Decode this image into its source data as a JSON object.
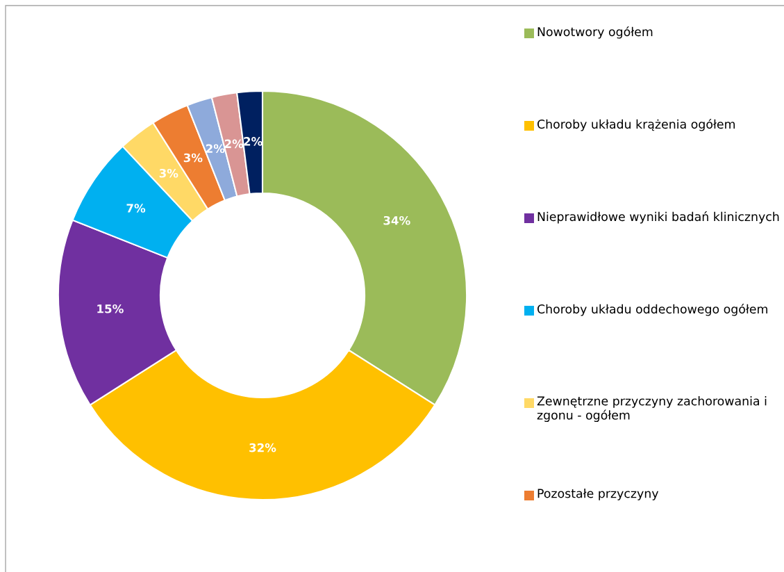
{
  "chart_data": {
    "type": "donut",
    "categories": [
      "Nowotwory ogółem",
      "Choroby układu krążenia ogółem",
      "Nieprawidłowe wyniki badań klinicznych",
      "Choroby układu oddechowego ogółem",
      "Zewnętrzne przyczyny zachorowania i zgonu - ogółem",
      "Pozostałe przyczyny",
      null,
      null,
      null
    ],
    "values": [
      34,
      32,
      15,
      7,
      3,
      3,
      2,
      2,
      2
    ],
    "value_labels": [
      "34%",
      "32%",
      "15%",
      "7%",
      "3%",
      "3%",
      "2%",
      "2%",
      "2%"
    ],
    "colors": [
      "#9bbb59",
      "#ffc000",
      "#7030a0",
      "#00b0f0",
      "#ffd966",
      "#ed7d31",
      "#8eaadb",
      "#d99594",
      "#002060"
    ],
    "legend": "right"
  }
}
